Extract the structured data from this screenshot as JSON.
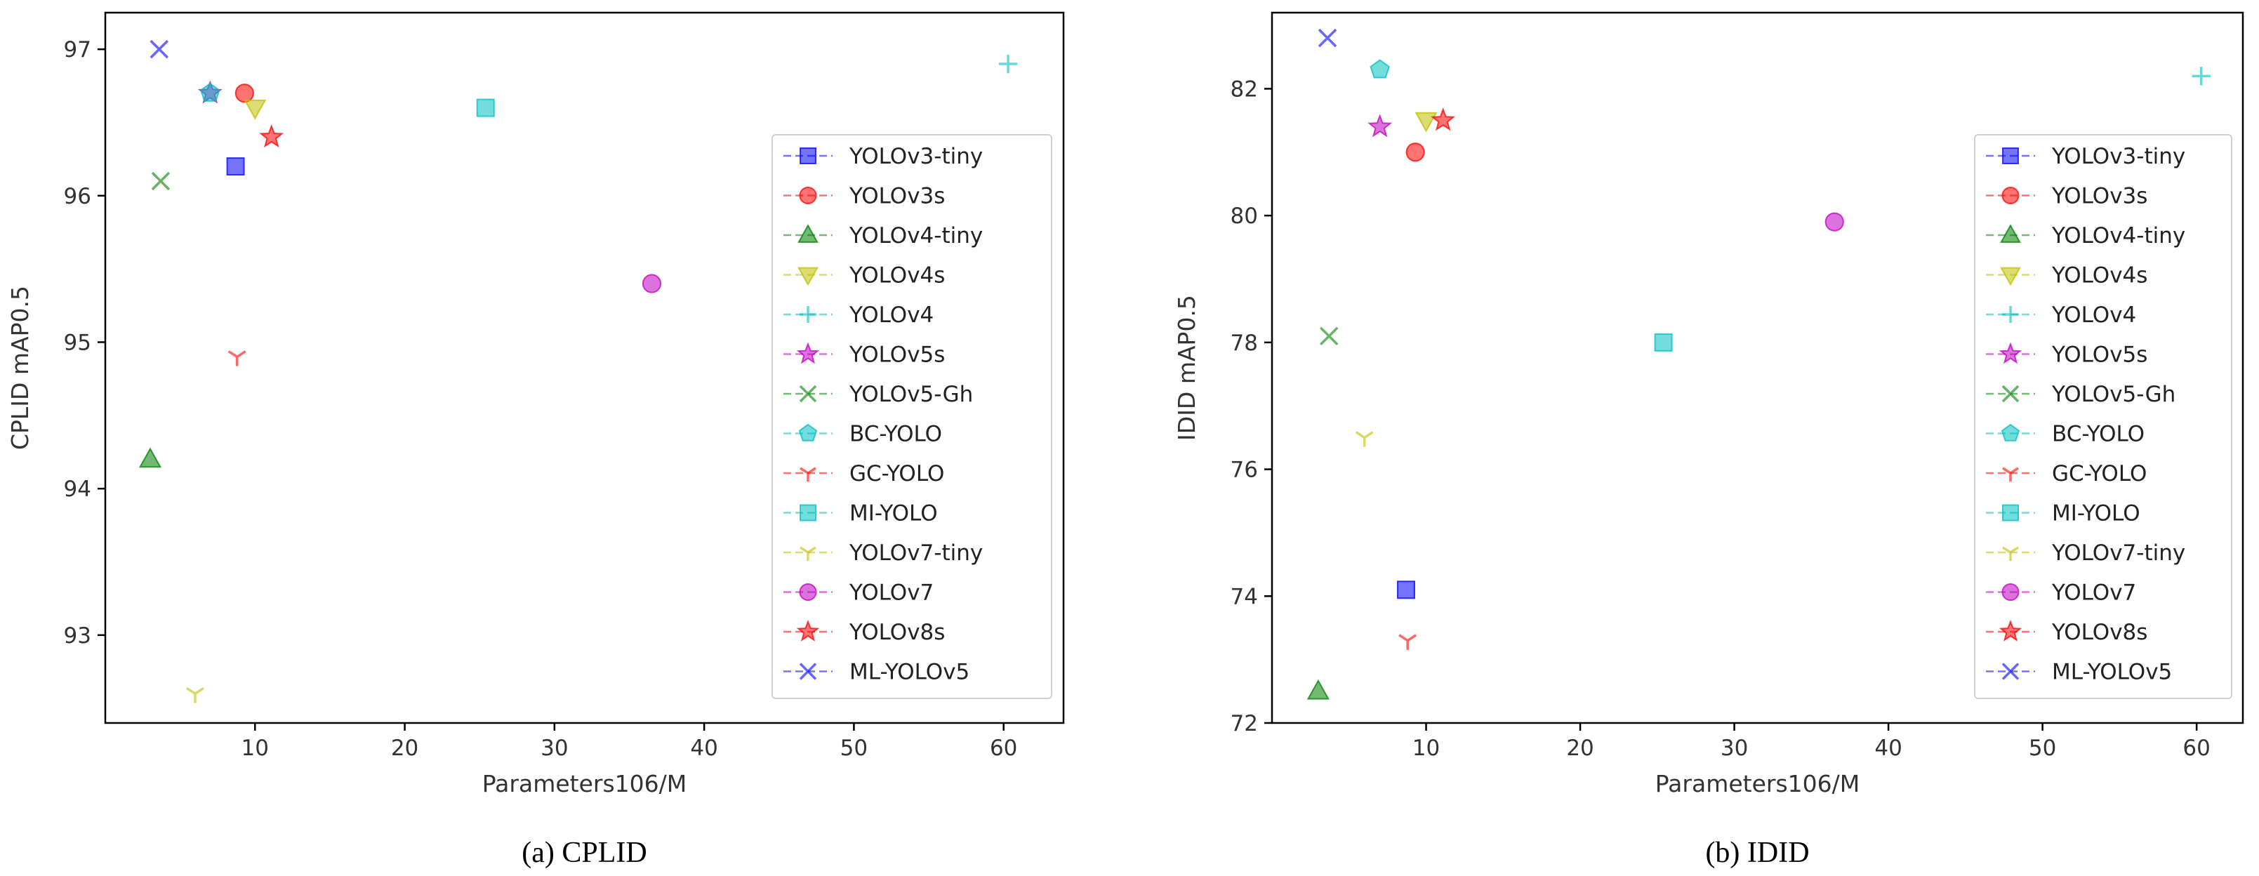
{
  "chart_data": [
    {
      "type": "scatter",
      "caption": "(a) CPLID",
      "xlabel": "Parameters106/M",
      "ylabel": "CPLID mAP0.5",
      "xlim": [
        0,
        64
      ],
      "ylim": [
        92.4,
        97.25
      ],
      "xticks": [
        10,
        20,
        30,
        40,
        50,
        60
      ],
      "yticks": [
        93,
        94,
        95,
        96,
        97
      ],
      "grid": false,
      "legend_position": "center-right",
      "series": [
        {
          "name": "YOLOv3-tiny",
          "color": "#0000ff",
          "marker": "square",
          "x": 8.7,
          "y": 96.2
        },
        {
          "name": "YOLOv3s",
          "color": "#ff0000",
          "marker": "circle",
          "x": 9.3,
          "y": 96.7
        },
        {
          "name": "YOLOv4-tiny",
          "color": "#008000",
          "marker": "triangle-up",
          "x": 3.0,
          "y": 94.2
        },
        {
          "name": "YOLOv4s",
          "color": "#bfbf00",
          "marker": "triangle-down",
          "x": 10.0,
          "y": 96.6
        },
        {
          "name": "YOLOv4",
          "color": "#00bfbf",
          "marker": "plus",
          "x": 60.3,
          "y": 96.9
        },
        {
          "name": "YOLOv5s",
          "color": "#bf00bf",
          "marker": "star",
          "x": 7.0,
          "y": 96.7
        },
        {
          "name": "YOLOv5-Gh",
          "color": "#008000",
          "marker": "x",
          "x": 3.7,
          "y": 96.1
        },
        {
          "name": "BC-YOLO",
          "color": "#00bfbf",
          "marker": "pentagon",
          "x": 7.0,
          "y": 96.7
        },
        {
          "name": "GC-YOLO",
          "color": "#ff0000",
          "marker": "tri-down",
          "x": 8.8,
          "y": 94.9
        },
        {
          "name": "MI-YOLO",
          "color": "#00bfbf",
          "marker": "square",
          "x": 25.4,
          "y": 96.6
        },
        {
          "name": "YOLOv7-tiny",
          "color": "#bfbf00",
          "marker": "tri-down",
          "x": 6.0,
          "y": 92.6
        },
        {
          "name": "YOLOv7",
          "color": "#bf00bf",
          "marker": "circle",
          "x": 36.5,
          "y": 95.4
        },
        {
          "name": "YOLOv8s",
          "color": "#ff0000",
          "marker": "star",
          "x": 11.1,
          "y": 96.4
        },
        {
          "name": "ML-YOLOv5",
          "color": "#0000ff",
          "marker": "x",
          "x": 3.6,
          "y": 97.0
        }
      ]
    },
    {
      "type": "scatter",
      "caption": "(b) IDID",
      "xlabel": "Parameters106/M",
      "ylabel": "IDID mAP0.5",
      "xlim": [
        0,
        63
      ],
      "ylim": [
        72.0,
        83.2
      ],
      "xticks": [
        10,
        20,
        30,
        40,
        50,
        60
      ],
      "yticks": [
        72,
        74,
        76,
        78,
        80,
        82
      ],
      "grid": false,
      "legend_position": "center-right",
      "series": [
        {
          "name": "YOLOv3-tiny",
          "color": "#0000ff",
          "marker": "square",
          "x": 8.7,
          "y": 74.1
        },
        {
          "name": "YOLOv3s",
          "color": "#ff0000",
          "marker": "circle",
          "x": 9.3,
          "y": 81.0
        },
        {
          "name": "YOLOv4-tiny",
          "color": "#008000",
          "marker": "triangle-up",
          "x": 3.0,
          "y": 72.5
        },
        {
          "name": "YOLOv4s",
          "color": "#bfbf00",
          "marker": "triangle-down",
          "x": 10.0,
          "y": 81.5
        },
        {
          "name": "YOLOv4",
          "color": "#00bfbf",
          "marker": "plus",
          "x": 60.3,
          "y": 82.2
        },
        {
          "name": "YOLOv5s",
          "color": "#bf00bf",
          "marker": "star",
          "x": 7.0,
          "y": 81.4
        },
        {
          "name": "YOLOv5-Gh",
          "color": "#008000",
          "marker": "x",
          "x": 3.7,
          "y": 78.1
        },
        {
          "name": "BC-YOLO",
          "color": "#00bfbf",
          "marker": "pentagon",
          "x": 7.0,
          "y": 82.3
        },
        {
          "name": "GC-YOLO",
          "color": "#ff0000",
          "marker": "tri-down",
          "x": 8.8,
          "y": 73.3
        },
        {
          "name": "MI-YOLO",
          "color": "#00bfbf",
          "marker": "square",
          "x": 25.4,
          "y": 78.0
        },
        {
          "name": "YOLOv7-tiny",
          "color": "#bfbf00",
          "marker": "tri-down",
          "x": 6.0,
          "y": 76.5
        },
        {
          "name": "YOLOv7",
          "color": "#bf00bf",
          "marker": "circle",
          "x": 36.5,
          "y": 79.9
        },
        {
          "name": "YOLOv8s",
          "color": "#ff0000",
          "marker": "star",
          "x": 11.1,
          "y": 81.5
        },
        {
          "name": "ML-YOLOv5",
          "color": "#0000ff",
          "marker": "x",
          "x": 3.6,
          "y": 82.8
        }
      ]
    }
  ]
}
